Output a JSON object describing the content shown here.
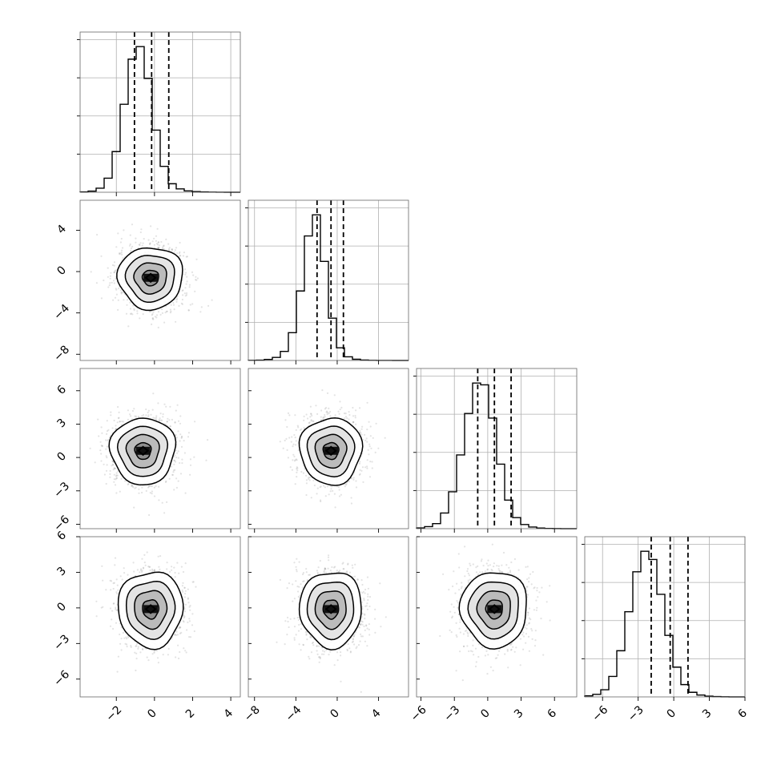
{
  "chart_data": {
    "type": "corner",
    "grid": true,
    "variables": [
      {
        "ticks": [
          "−2",
          "0",
          "2",
          "4"
        ],
        "range": [
          -3.9,
          4.5
        ],
        "mean": -0.2,
        "sd": 0.85,
        "quantiles": [
          -1.05,
          -0.15,
          0.75
        ],
        "hist": {
          "edges": [
            -3.9,
            -3.48,
            -3.06,
            -2.64,
            -2.22,
            -1.8,
            -1.38,
            -0.96,
            -0.54,
            -0.12,
            0.3,
            0.72,
            1.14,
            1.56,
            1.98,
            2.4,
            2.82,
            3.24,
            3.66,
            4.08,
            4.5
          ],
          "counts": [
            5,
            15,
            55,
            190,
            550,
            1190,
            1800,
            1970,
            1540,
            840,
            350,
            115,
            45,
            18,
            8,
            4,
            2,
            1,
            0,
            0
          ]
        }
      },
      {
        "ticks": [
          "−8",
          "−4",
          "0",
          "4"
        ],
        "range": [
          -8.6,
          6.9
        ],
        "mean": -0.6,
        "sd": 1.5,
        "quantiles": [
          -1.95,
          -0.6,
          0.6
        ],
        "hist": {
          "edges": [
            -8.6,
            -7.825,
            -7.05,
            -6.275,
            -5.5,
            -4.725,
            -3.95,
            -3.175,
            -2.4,
            -1.625,
            -0.85,
            -0.075,
            0.7,
            1.475,
            2.25,
            3.025,
            3.8,
            4.575,
            5.35,
            6.125,
            6.9
          ],
          "counts": [
            3,
            6,
            18,
            50,
            150,
            460,
            1150,
            2060,
            2410,
            1640,
            700,
            210,
            60,
            20,
            7,
            3,
            1,
            1,
            0,
            0
          ]
        }
      },
      {
        "ticks": [
          "−6",
          "−3",
          "0",
          "3",
          "6"
        ],
        "range": [
          -6.4,
          8.0
        ],
        "mean": 0.55,
        "sd": 1.5,
        "quantiles": [
          -0.9,
          0.6,
          2.1
        ],
        "hist": {
          "edges": [
            -6.4,
            -5.68,
            -4.96,
            -4.24,
            -3.52,
            -2.8,
            -2.08,
            -1.36,
            -0.64,
            0.08,
            0.8,
            1.52,
            2.24,
            2.96,
            3.68,
            4.4,
            5.12,
            5.84,
            6.56,
            7.28,
            8.0
          ],
          "counts": [
            8,
            22,
            55,
            170,
            400,
            800,
            1250,
            1580,
            1560,
            1200,
            700,
            310,
            120,
            45,
            18,
            7,
            3,
            1,
            0,
            0
          ]
        }
      },
      {
        "ticks": [
          "−6",
          "−3",
          "0",
          "3",
          "6"
        ],
        "range": [
          -7.5,
          6.0
        ],
        "mean": -0.4,
        "sd": 1.6,
        "quantiles": [
          -1.9,
          -0.3,
          1.2
        ],
        "hist": {
          "edges": [
            -7.5,
            -6.825,
            -6.15,
            -5.475,
            -4.8,
            -4.125,
            -3.45,
            -2.775,
            -2.1,
            -1.425,
            -0.75,
            -0.075,
            0.6,
            1.275,
            1.95,
            2.625,
            3.3,
            3.975,
            4.65,
            5.325,
            6.0
          ],
          "counts": [
            10,
            25,
            70,
            200,
            450,
            830,
            1220,
            1420,
            1340,
            1000,
            600,
            290,
            120,
            45,
            18,
            7,
            3,
            1,
            0,
            0
          ]
        }
      }
    ],
    "pairs": [
      {
        "row": 1,
        "col": 0,
        "peak": [
          -0.2,
          -0.6
        ]
      },
      {
        "row": 2,
        "col": 0,
        "peak": [
          -0.6,
          0.6
        ]
      },
      {
        "row": 2,
        "col": 1,
        "peak": [
          -0.6,
          0.6
        ]
      },
      {
        "row": 3,
        "col": 0,
        "peak": [
          -0.2,
          -0.1
        ]
      },
      {
        "row": 3,
        "col": 1,
        "peak": [
          -0.6,
          -0.1
        ]
      },
      {
        "row": 3,
        "col": 2,
        "peak": [
          0.6,
          -0.1
        ]
      }
    ],
    "contour_levels_sigma": [
      0.5,
      1.0,
      1.5,
      2.0
    ]
  }
}
